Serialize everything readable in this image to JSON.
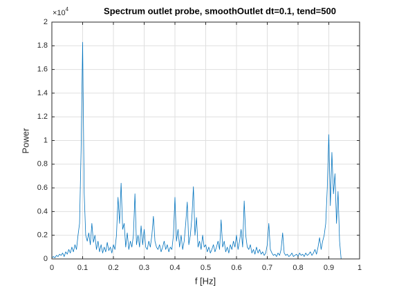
{
  "chart_data": {
    "type": "line",
    "title": "Spectrum outlet probe, smoothOutlet dt=0.1, tend=500",
    "x_label": "f [Hz]",
    "y_label": "Power",
    "y_exponent": {
      "base": "×10",
      "power": "4"
    },
    "color": "#0072bd",
    "grid": true,
    "xlim": [
      0,
      1
    ],
    "xticks": [
      0,
      0.1,
      0.2,
      0.3,
      0.4,
      0.5,
      0.6,
      0.7,
      0.8,
      0.9,
      1
    ],
    "ylim": [
      0,
      2
    ],
    "yticks": [
      0,
      0.2,
      0.4,
      0.6,
      0.8,
      1,
      1.2,
      1.4,
      1.6,
      1.8,
      2
    ],
    "x": [
      0,
      0.005,
      0.01,
      0.015,
      0.02,
      0.025,
      0.03,
      0.035,
      0.04,
      0.045,
      0.05,
      0.055,
      0.06,
      0.065,
      0.07,
      0.075,
      0.08,
      0.085,
      0.09,
      0.095,
      0.1,
      0.105,
      0.11,
      0.115,
      0.12,
      0.125,
      0.13,
      0.135,
      0.14,
      0.145,
      0.15,
      0.155,
      0.16,
      0.165,
      0.17,
      0.175,
      0.18,
      0.185,
      0.19,
      0.195,
      0.2,
      0.205,
      0.21,
      0.215,
      0.22,
      0.225,
      0.23,
      0.235,
      0.24,
      0.245,
      0.25,
      0.255,
      0.26,
      0.265,
      0.27,
      0.275,
      0.28,
      0.285,
      0.29,
      0.295,
      0.3,
      0.305,
      0.31,
      0.315,
      0.32,
      0.325,
      0.33,
      0.335,
      0.34,
      0.345,
      0.35,
      0.355,
      0.36,
      0.365,
      0.37,
      0.375,
      0.38,
      0.385,
      0.39,
      0.395,
      0.4,
      0.405,
      0.41,
      0.415,
      0.42,
      0.425,
      0.43,
      0.435,
      0.44,
      0.445,
      0.45,
      0.455,
      0.46,
      0.465,
      0.47,
      0.475,
      0.48,
      0.485,
      0.49,
      0.495,
      0.5,
      0.505,
      0.51,
      0.515,
      0.52,
      0.525,
      0.53,
      0.535,
      0.54,
      0.545,
      0.55,
      0.555,
      0.56,
      0.565,
      0.57,
      0.575,
      0.58,
      0.585,
      0.59,
      0.595,
      0.6,
      0.605,
      0.61,
      0.615,
      0.62,
      0.625,
      0.63,
      0.635,
      0.64,
      0.645,
      0.65,
      0.655,
      0.66,
      0.665,
      0.67,
      0.675,
      0.68,
      0.685,
      0.69,
      0.695,
      0.7,
      0.705,
      0.71,
      0.715,
      0.72,
      0.725,
      0.73,
      0.735,
      0.74,
      0.745,
      0.75,
      0.755,
      0.76,
      0.765,
      0.77,
      0.775,
      0.78,
      0.785,
      0.79,
      0.795,
      0.8,
      0.805,
      0.81,
      0.815,
      0.82,
      0.825,
      0.83,
      0.835,
      0.84,
      0.845,
      0.85,
      0.855,
      0.86,
      0.865,
      0.87,
      0.875,
      0.88,
      0.885,
      0.89,
      0.895,
      0.9,
      0.905,
      0.91,
      0.915,
      0.92,
      0.925,
      0.93,
      0.935,
      0.94
    ],
    "values": [
      0.01,
      0.02,
      0.01,
      0.03,
      0.02,
      0.04,
      0.03,
      0.05,
      0.02,
      0.06,
      0.04,
      0.08,
      0.05,
      0.1,
      0.06,
      0.12,
      0.08,
      0.2,
      0.3,
      0.92,
      1.83,
      0.56,
      0.2,
      0.15,
      0.22,
      0.12,
      0.3,
      0.14,
      0.2,
      0.08,
      0.15,
      0.06,
      0.12,
      0.05,
      0.1,
      0.06,
      0.14,
      0.07,
      0.1,
      0.05,
      0.12,
      0.08,
      0.2,
      0.52,
      0.3,
      0.64,
      0.25,
      0.3,
      0.1,
      0.22,
      0.08,
      0.15,
      0.1,
      0.2,
      0.55,
      0.12,
      0.2,
      0.1,
      0.28,
      0.12,
      0.25,
      0.1,
      0.08,
      0.15,
      0.1,
      0.2,
      0.36,
      0.15,
      0.1,
      0.08,
      0.12,
      0.06,
      0.1,
      0.15,
      0.08,
      0.12,
      0.06,
      0.1,
      0.08,
      0.2,
      0.52,
      0.15,
      0.25,
      0.1,
      0.2,
      0.08,
      0.15,
      0.3,
      0.48,
      0.12,
      0.2,
      0.35,
      0.61,
      0.2,
      0.35,
      0.1,
      0.15,
      0.08,
      0.2,
      0.1,
      0.12,
      0.06,
      0.1,
      0.05,
      0.08,
      0.12,
      0.06,
      0.1,
      0.15,
      0.08,
      0.33,
      0.1,
      0.15,
      0.06,
      0.1,
      0.05,
      0.12,
      0.08,
      0.15,
      0.1,
      0.2,
      0.08,
      0.15,
      0.25,
      0.1,
      0.49,
      0.2,
      0.1,
      0.08,
      0.12,
      0.05,
      0.08,
      0.04,
      0.1,
      0.05,
      0.08,
      0.04,
      0.06,
      0.03,
      0.05,
      0.12,
      0.3,
      0.08,
      0.05,
      0.03,
      0.04,
      0.02,
      0.05,
      0.03,
      0.08,
      0.22,
      0.05,
      0.03,
      0.04,
      0.02,
      0.03,
      0.05,
      0.02,
      0.03,
      0.04,
      0.02,
      0.05,
      0.03,
      0.04,
      0.02,
      0.05,
      0.03,
      0.04,
      0.06,
      0.03,
      0.05,
      0.08,
      0.04,
      0.1,
      0.18,
      0.08,
      0.15,
      0.2,
      0.3,
      0.6,
      1.05,
      0.45,
      0.9,
      0.55,
      0.72,
      0.3,
      0.57,
      0.15,
      0
    ]
  }
}
